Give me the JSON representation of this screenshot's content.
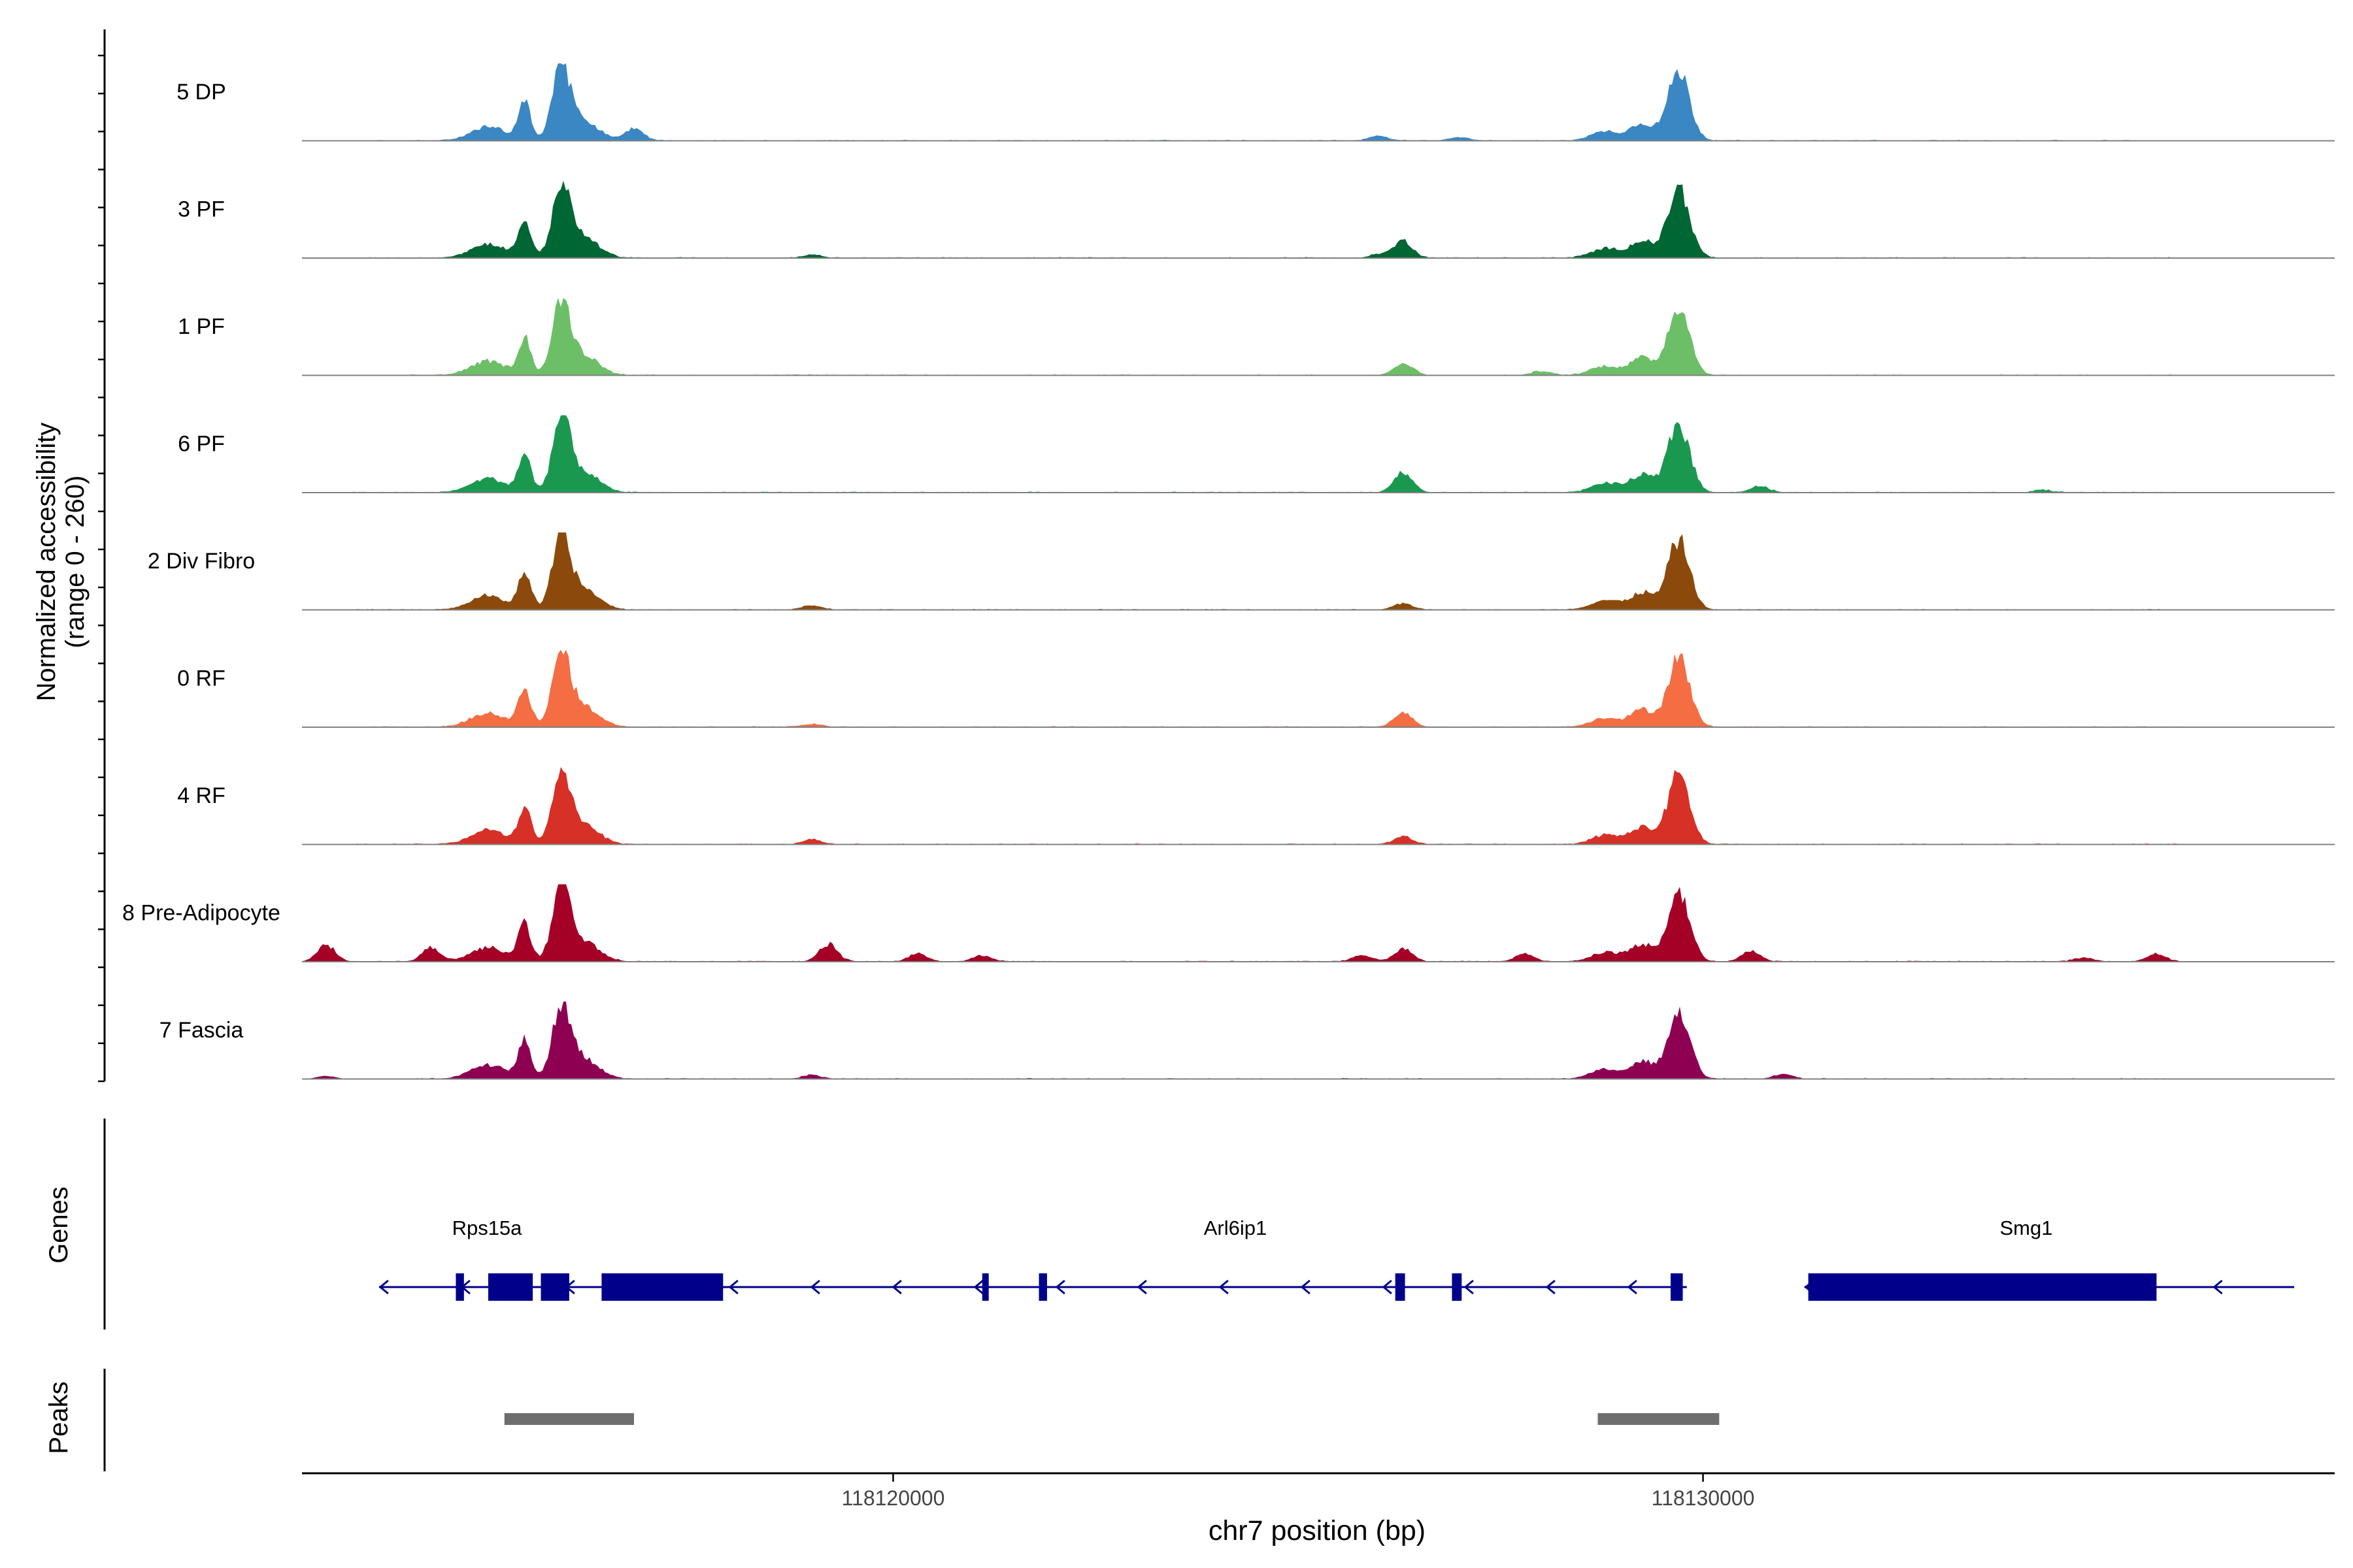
{
  "chart_data": {
    "type": "area",
    "title": "",
    "xlabel": "chr7 position (bp)",
    "ylabel_line1": "Normalized accessibility",
    "ylabel_line2": "(range 0 - 260)",
    "y_range": [
      0,
      260
    ],
    "x_range": [
      118112700,
      118137800
    ],
    "x_ticks": [
      118120000,
      118130000
    ],
    "x_tick_labels": [
      "118120000",
      "118130000"
    ],
    "peak_centers_bp": [
      118115900,
      118129700
    ],
    "tracks": [
      {
        "name": "5 DP",
        "color": "#3A87C4",
        "minor": [
          [
            118116800,
            0.16
          ],
          [
            118126000,
            0.06
          ],
          [
            118127000,
            0.04
          ]
        ]
      },
      {
        "name": "3 PF",
        "color": "#006633",
        "minor": [
          [
            118126300,
            0.22
          ],
          [
            118126000,
            0.05
          ],
          [
            118119000,
            0.04
          ]
        ]
      },
      {
        "name": "1 PF",
        "color": "#6DBF67",
        "minor": [
          [
            118126300,
            0.16
          ],
          [
            118128000,
            0.05
          ]
        ]
      },
      {
        "name": "6 PF",
        "color": "#1A9850",
        "minor": [
          [
            118126300,
            0.26
          ],
          [
            118130700,
            0.08
          ],
          [
            118134200,
            0.03
          ]
        ]
      },
      {
        "name": "2 Div Fibro",
        "color": "#8B4A0B",
        "minor": [
          [
            118126300,
            0.08
          ],
          [
            118119000,
            0.06
          ]
        ]
      },
      {
        "name": "0 RF",
        "color": "#F46D43",
        "minor": [
          [
            118126300,
            0.18
          ],
          [
            118119000,
            0.04
          ]
        ]
      },
      {
        "name": "4 RF",
        "color": "#D73027",
        "minor": [
          [
            118126300,
            0.1
          ],
          [
            118119000,
            0.06
          ]
        ]
      },
      {
        "name": "8 Pre-Adipocyte",
        "color": "#A50026",
        "minor": [
          [
            118113000,
            0.22
          ],
          [
            118114300,
            0.18
          ],
          [
            118119200,
            0.22
          ],
          [
            118120300,
            0.1
          ],
          [
            118121100,
            0.08
          ],
          [
            118125800,
            0.08
          ],
          [
            118126300,
            0.16
          ],
          [
            118127800,
            0.1
          ],
          [
            118130600,
            0.14
          ],
          [
            118135600,
            0.1
          ],
          [
            118134700,
            0.05
          ]
        ]
      },
      {
        "name": "7 Fascia",
        "color": "#8E0152",
        "minor": [
          [
            118113000,
            0.04
          ],
          [
            118119000,
            0.05
          ],
          [
            118131000,
            0.06
          ]
        ]
      }
    ],
    "genes": [
      {
        "name": "Rps15a",
        "start": 118113700,
        "end": 118116000,
        "strand": "-",
        "exons": [
          [
            118114600,
            118114700
          ],
          [
            118115000,
            118115550
          ],
          [
            118115650,
            118116000
          ]
        ]
      },
      {
        "name": "Arl6ip1",
        "start": 118116000,
        "end": 118129800,
        "strand": "-",
        "exons": [
          [
            118116400,
            118117900
          ],
          [
            118121100,
            118121180
          ],
          [
            118121800,
            118121900
          ],
          [
            118126200,
            118126320
          ],
          [
            118126900,
            118127020
          ],
          [
            118129600,
            118129750
          ]
        ]
      },
      {
        "name": "Smg1",
        "start": 118131300,
        "end": 118137300,
        "strand": "-",
        "exons": [
          [
            118131300,
            118135600
          ]
        ]
      }
    ],
    "peaks": [
      [
        118115200,
        118116800
      ],
      [
        118128700,
        118130200
      ]
    ],
    "gene_color": "#00008B",
    "peak_color": "#6E6E6E",
    "panel_titles": {
      "genes": "Genes",
      "peaks": "Peaks"
    }
  }
}
